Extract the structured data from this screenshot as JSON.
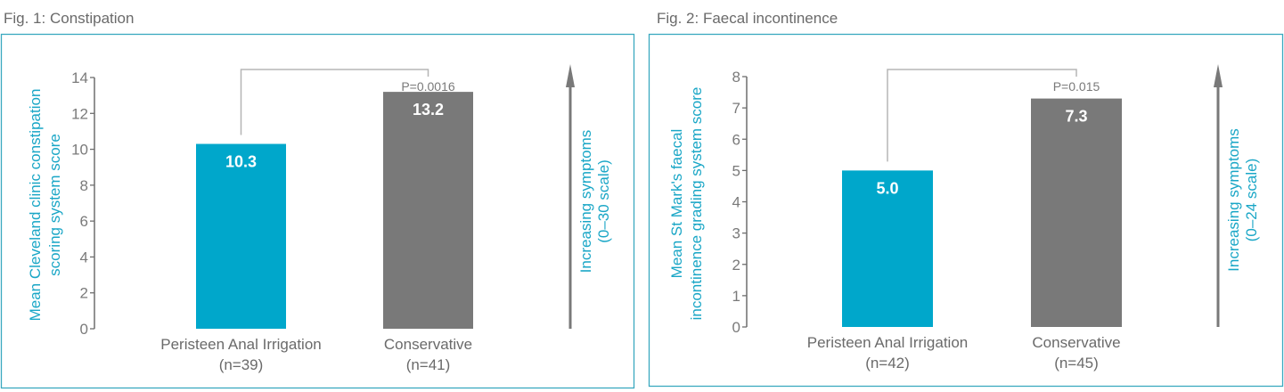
{
  "colors": {
    "accent": "#00a7cb",
    "conservative": "#797979",
    "border": "#3aa9bf",
    "axis": "#6e6e6e",
    "bracket": "#b5b5b5"
  },
  "chart_data": [
    {
      "type": "bar",
      "title": "Fig. 1: Constipation",
      "ylabel": [
        "Mean Cleveland clinic constipation",
        "scoring system score"
      ],
      "side_label": [
        "Increasing symptoms",
        "(0–30 scale)"
      ],
      "categories": [
        [
          "Peristeen Anal Irrigation",
          "(n=39)"
        ],
        [
          "Conservative",
          "(n=41)"
        ]
      ],
      "values": [
        10.3,
        13.2
      ],
      "value_labels": [
        "10.3",
        "13.2"
      ],
      "yticks": [
        "0",
        "2",
        "4",
        "6",
        "8",
        "10",
        "12",
        "14"
      ],
      "ytick_values": [
        0,
        2,
        4,
        6,
        8,
        10,
        12,
        14
      ],
      "ylim": [
        0,
        14
      ],
      "p_value": "P=0.0016",
      "grid": false
    },
    {
      "type": "bar",
      "title": "Fig. 2: Faecal incontinence",
      "ylabel": [
        "Mean St Mark's faecal",
        "incontinence grading system score"
      ],
      "side_label": [
        "Increasing symptoms",
        "(0–24  scale)"
      ],
      "categories": [
        [
          "Peristeen Anal Irrigation",
          "(n=42)"
        ],
        [
          "Conservative",
          "(n=45)"
        ]
      ],
      "values": [
        5.0,
        7.3
      ],
      "value_labels": [
        "5.0",
        "7.3"
      ],
      "yticks": [
        "0",
        "1",
        "2",
        "3",
        "4",
        "5",
        "6",
        "7",
        "8"
      ],
      "ytick_values": [
        0,
        1,
        2,
        3,
        4,
        5,
        6,
        7,
        8
      ],
      "ylim": [
        0,
        8
      ],
      "p_value": "P=0.015",
      "grid": false
    }
  ]
}
